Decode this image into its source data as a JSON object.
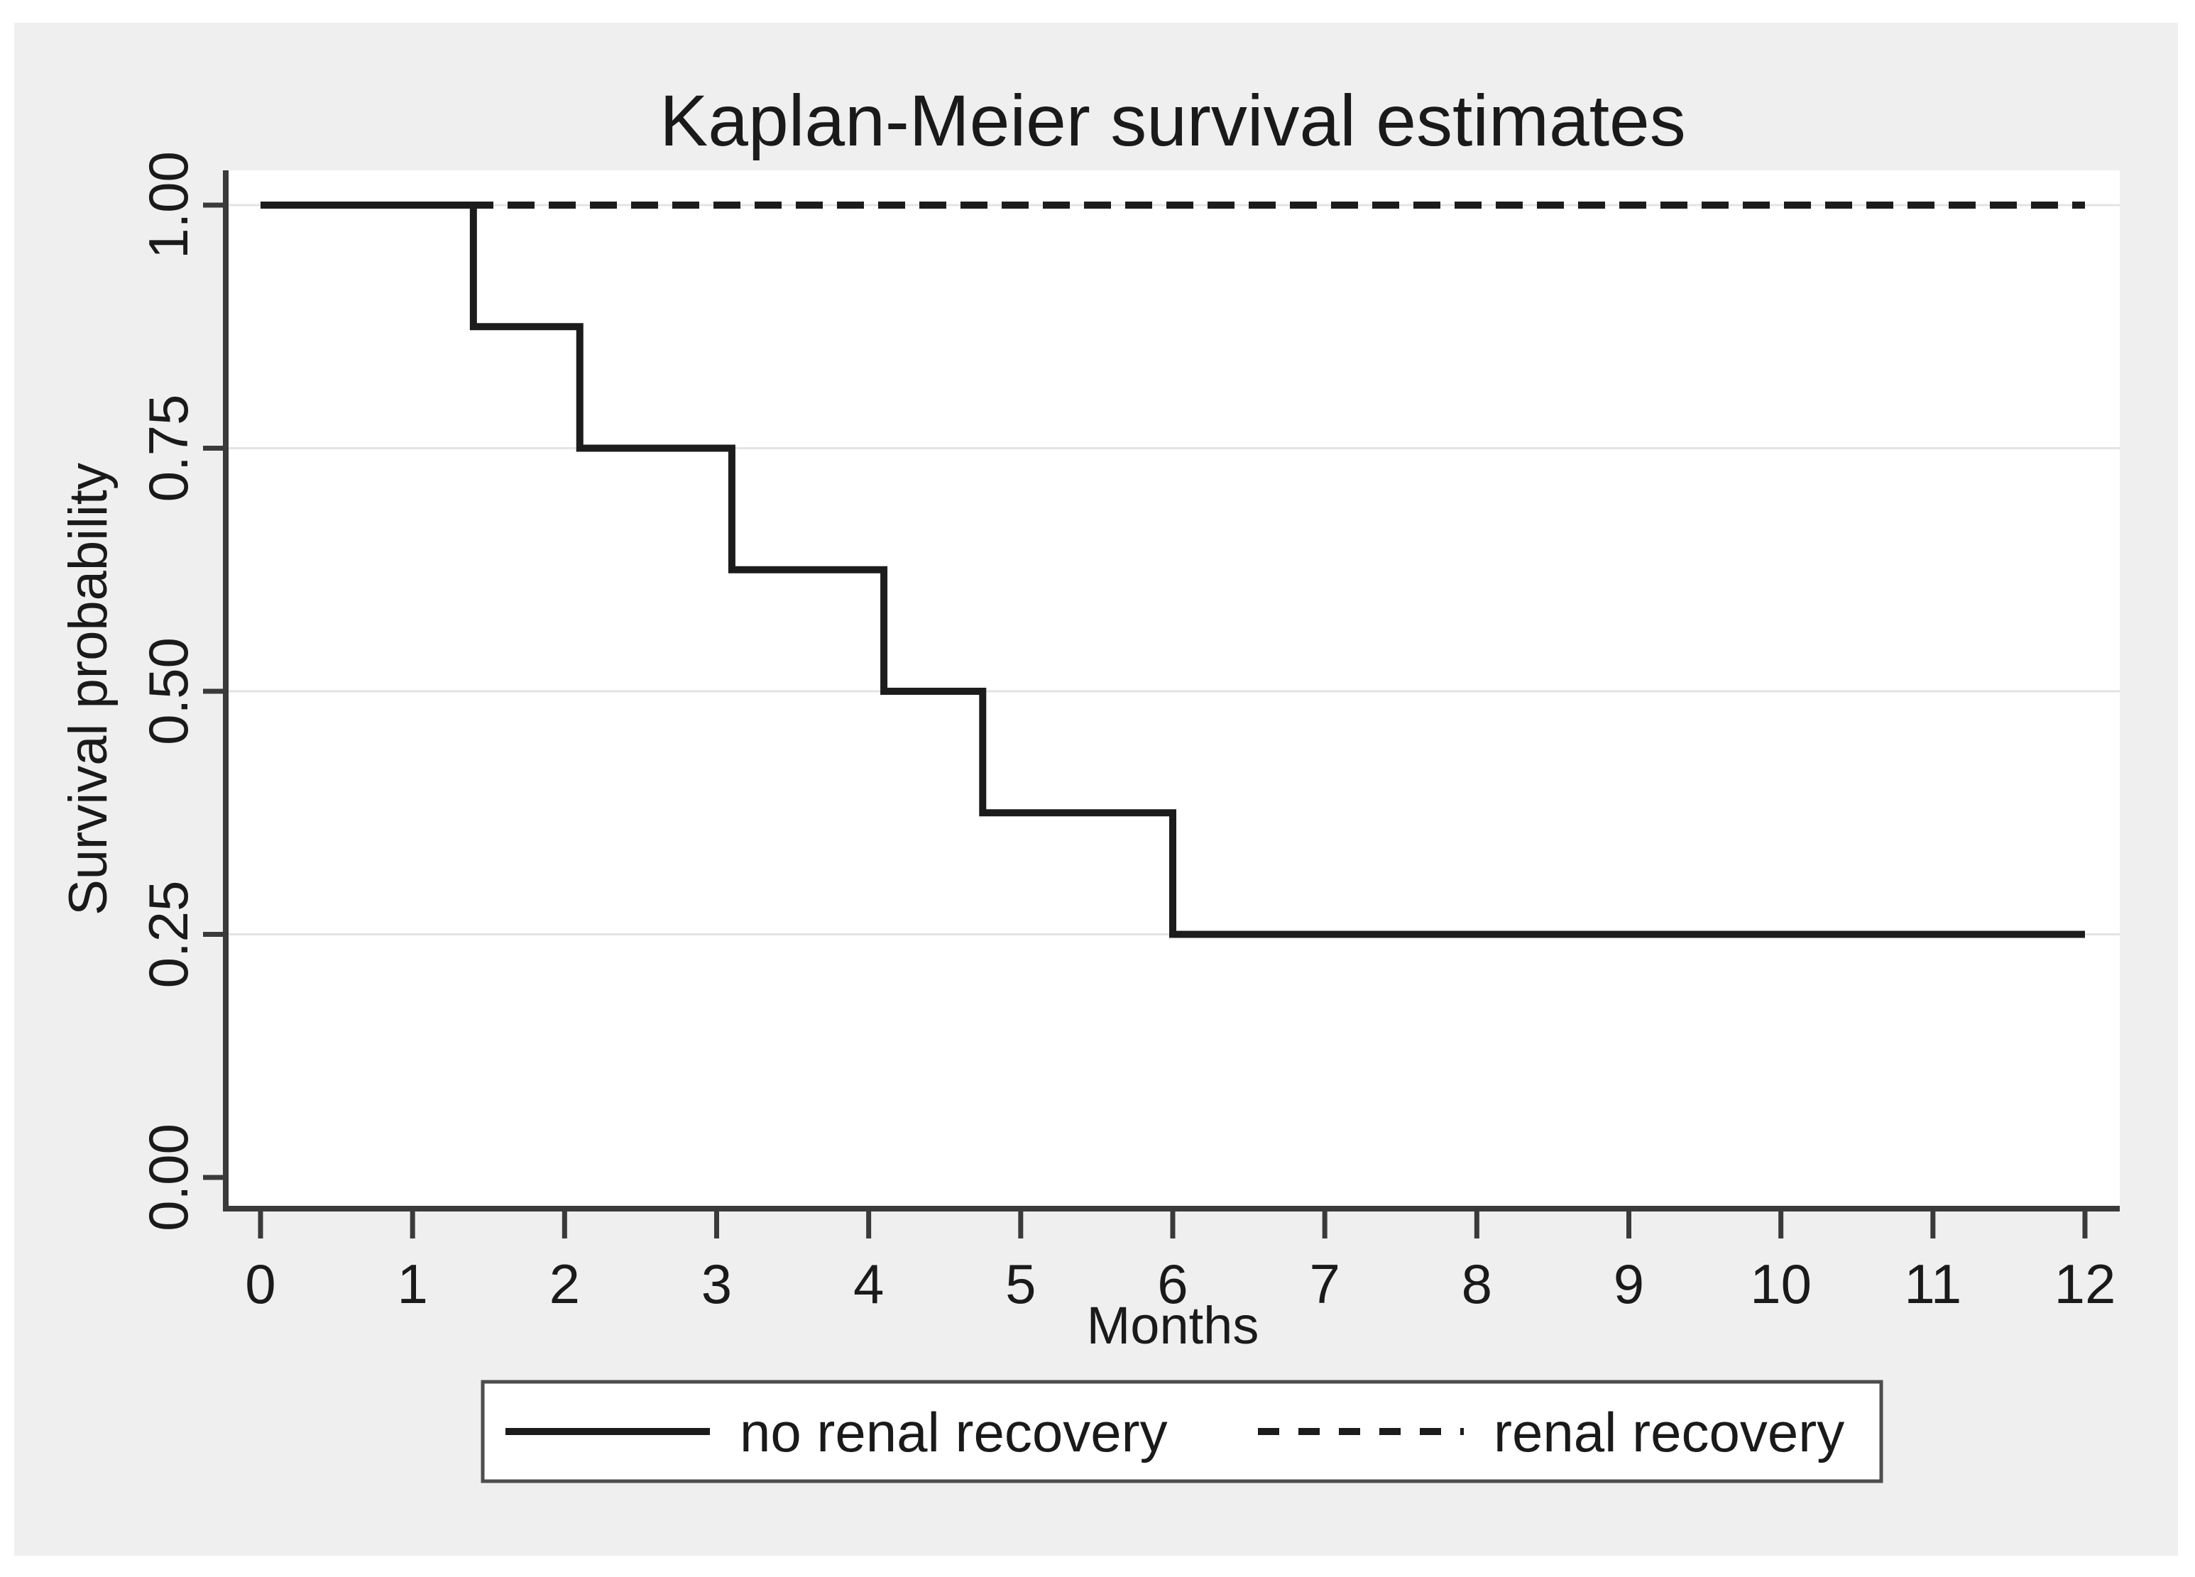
{
  "page": {
    "background": "#ffffff",
    "canvas_background": "#efefef"
  },
  "chart_data": {
    "type": "line",
    "subtype": "kaplan-meier-step",
    "title": "Kaplan-Meier survival estimates",
    "xlabel": "Months",
    "ylabel": "Survival probability",
    "xlim": [
      0,
      12
    ],
    "ylim": [
      0.0,
      1.0
    ],
    "x_ticks": [
      0,
      1,
      2,
      3,
      4,
      5,
      6,
      7,
      8,
      9,
      10,
      11,
      12
    ],
    "y_ticks": [
      {
        "value": 0.0,
        "label": "0.00"
      },
      {
        "value": 0.25,
        "label": "0.25"
      },
      {
        "value": 0.5,
        "label": "0.50"
      },
      {
        "value": 0.75,
        "label": "0.75"
      },
      {
        "value": 1.0,
        "label": "1.00"
      }
    ],
    "grid": "horizontal-at-labeled-ticks-except-zero",
    "legend_position": "bottom",
    "colors": {
      "line": "#1c1c1c",
      "grid": "#e3e3e3",
      "axis": "#3a3a3a",
      "canvas": "#efefef",
      "plot_background": "#ffffff",
      "text": "#1a1a1a",
      "legend_border": "#4d4d4d",
      "legend_background": "#ffffff"
    },
    "series": [
      {
        "name": "renal recovery",
        "style": "dashed",
        "points": [
          [
            0,
            1.0
          ],
          [
            12,
            1.0
          ]
        ]
      },
      {
        "name": "no renal recovery",
        "style": "solid",
        "event_times_months": [
          1.4,
          2.1,
          3.1,
          4.1,
          4.75,
          6.0
        ],
        "survival_levels": [
          1.0,
          0.875,
          0.75,
          0.625,
          0.5,
          0.375,
          0.25
        ],
        "points": [
          [
            0,
            1.0
          ],
          [
            1.4,
            1.0
          ],
          [
            1.4,
            0.875
          ],
          [
            2.1,
            0.875
          ],
          [
            2.1,
            0.75
          ],
          [
            3.1,
            0.75
          ],
          [
            3.1,
            0.625
          ],
          [
            4.1,
            0.625
          ],
          [
            4.1,
            0.5
          ],
          [
            4.75,
            0.5
          ],
          [
            4.75,
            0.375
          ],
          [
            6.0,
            0.375
          ],
          [
            6.0,
            0.25
          ],
          [
            12,
            0.25
          ]
        ]
      }
    ],
    "legend": {
      "entries": [
        {
          "label": "no renal recovery",
          "style": "solid"
        },
        {
          "label": "renal recovery",
          "style": "dashed"
        }
      ]
    }
  }
}
